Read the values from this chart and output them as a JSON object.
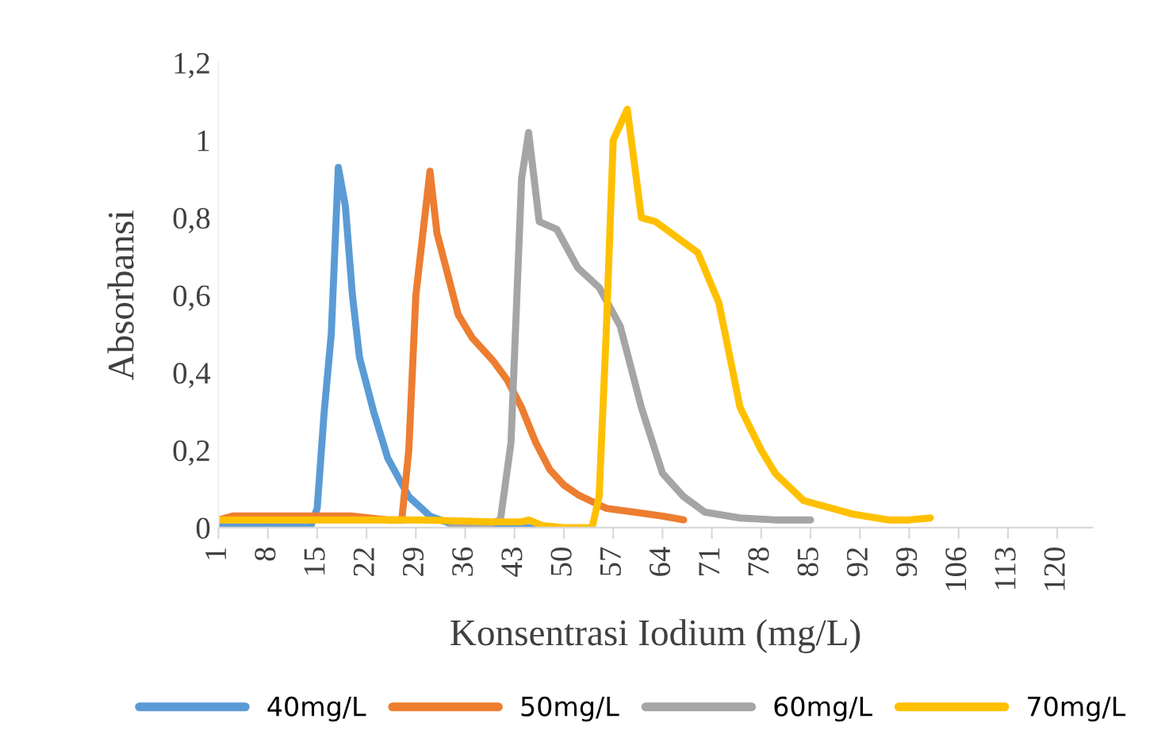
{
  "chart_data": {
    "type": "line",
    "xlabel": "Konsentrasi Iodium (mg/L)",
    "ylabel": "Absorbansi",
    "xlim": [
      1,
      125
    ],
    "xticks": [
      1,
      8,
      15,
      22,
      29,
      36,
      43,
      50,
      57,
      64,
      71,
      78,
      85,
      92,
      99,
      106,
      113,
      120
    ],
    "ylim": [
      0,
      1.2
    ],
    "yticks": [
      0,
      {
        "value": 0.2,
        "label": "0,2"
      },
      {
        "value": 0.4,
        "label": "0,4"
      },
      {
        "value": 0.6,
        "label": "0,6"
      },
      {
        "value": 0.8,
        "label": "0,8"
      },
      1,
      {
        "value": 1.2,
        "label": "1,2"
      }
    ],
    "grid": false,
    "legend": "bottom",
    "line_style": "solid",
    "marker": "none",
    "series": [
      {
        "name": "40mg/L",
        "color": "#5b9bd5",
        "x": [
          1,
          5,
          10,
          14,
          15,
          16,
          17,
          18,
          19,
          20,
          21,
          23,
          25,
          28,
          31,
          34,
          38,
          42,
          46,
          48
        ],
        "values": [
          0.01,
          0.01,
          0.01,
          0.0,
          0.05,
          0.3,
          0.5,
          0.93,
          0.83,
          0.6,
          0.44,
          0.3,
          0.18,
          0.08,
          0.03,
          0.01,
          0.0,
          0.0,
          0.0,
          0.0
        ]
      },
      {
        "name": "50mg/L",
        "color": "#ed7d31",
        "x": [
          1,
          3,
          10,
          20,
          25,
          27,
          28,
          29,
          31,
          32,
          34,
          35,
          37,
          40,
          42,
          44,
          46,
          48,
          50,
          52,
          56,
          60,
          64,
          67
        ],
        "values": [
          0.02,
          0.03,
          0.03,
          0.03,
          0.02,
          0.02,
          0.2,
          0.6,
          0.92,
          0.76,
          0.62,
          0.55,
          0.49,
          0.43,
          0.38,
          0.31,
          0.22,
          0.15,
          0.11,
          0.085,
          0.05,
          0.04,
          0.03,
          0.02
        ]
      },
      {
        "name": "60mg/L",
        "color": "#a5a5a5",
        "x": [
          34,
          38,
          41,
          42.5,
          44,
          45,
          46.5,
          49,
          52,
          55,
          58,
          61,
          64,
          67,
          70,
          75,
          80,
          85
        ],
        "values": [
          0.0,
          0.0,
          0.02,
          0.22,
          0.9,
          1.02,
          0.79,
          0.77,
          0.67,
          0.62,
          0.52,
          0.31,
          0.14,
          0.08,
          0.04,
          0.025,
          0.02,
          0.02
        ]
      },
      {
        "name": "70mg/L",
        "color": "#ffc000",
        "x": [
          1,
          10,
          20,
          30,
          40,
          44,
          45,
          47,
          50,
          54,
          55,
          56,
          57,
          59,
          61,
          63,
          66,
          69,
          72,
          75,
          78,
          80,
          84,
          88,
          91,
          96,
          99,
          102
        ],
        "values": [
          0.02,
          0.02,
          0.02,
          0.02,
          0.015,
          0.015,
          0.02,
          0.005,
          0.0,
          0.0,
          0.08,
          0.5,
          1.0,
          1.08,
          0.8,
          0.79,
          0.75,
          0.71,
          0.58,
          0.31,
          0.2,
          0.14,
          0.07,
          0.05,
          0.035,
          0.02,
          0.02,
          0.025
        ]
      }
    ]
  }
}
